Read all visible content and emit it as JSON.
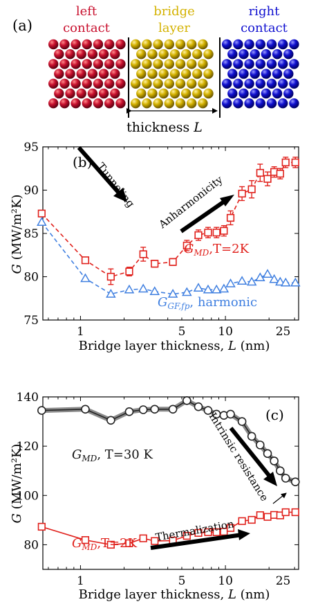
{
  "panel_a": {
    "label": "(a)",
    "left_line1": "left",
    "left_line2": "contact",
    "bridge_line1": "bridge",
    "bridge_line2": "layer",
    "right_line1": "right",
    "right_line2": "contact",
    "thickness_label": "thickness",
    "thickness_symbol": "L",
    "colors": {
      "left": "#c8102e",
      "bridge": "#d4b200",
      "right": "#1010d0"
    }
  },
  "chart_data": [
    {
      "type": "line",
      "panel_label": "(b)",
      "x_scale": "log",
      "xlim": [
        0.55,
        32
      ],
      "ylim": [
        75,
        95
      ],
      "xticks": [
        1,
        5,
        10,
        25
      ],
      "xtick_labels": [
        "1",
        "5",
        "10",
        "25"
      ],
      "yticks": [
        75,
        80,
        85,
        90,
        95
      ],
      "ytick_labels": [
        "75",
        "80",
        "85",
        "90",
        "95"
      ],
      "xlabel": "Bridge layer thickness,",
      "xlabel_symbol": "L",
      "xlabel_unit": "(nm)",
      "ylabel_symbol": "G",
      "ylabel_unit": "(MW/m²K)",
      "series": [
        {
          "name_main": "G",
          "name_sub": "MD",
          "name_rest": ",T=2K",
          "color": "#e0201b",
          "marker": "square",
          "dashed": true,
          "x": [
            0.54,
            1.08,
            1.62,
            2.17,
            2.71,
            3.25,
            4.34,
            5.42,
            6.51,
            7.59,
            8.68,
            9.76,
            10.85,
            13.02,
            15.19,
            17.36,
            19.53,
            21.7,
            23.87,
            26.04,
            30.38
          ],
          "y": [
            87.3,
            81.9,
            80.0,
            80.6,
            82.6,
            81.5,
            81.7,
            83.6,
            84.8,
            85.1,
            85.1,
            85.3,
            86.8,
            89.6,
            90.1,
            92.0,
            91.3,
            92.1,
            91.9,
            93.2,
            93.2
          ],
          "err": [
            0.3,
            0.3,
            0.9,
            0.5,
            0.8,
            0.4,
            0.4,
            0.6,
            0.6,
            0.6,
            0.6,
            0.6,
            0.8,
            0.8,
            1.0,
            1.0,
            0.8,
            0.6,
            0.6,
            0.6,
            0.6
          ]
        },
        {
          "name_main": "G",
          "name_sub": "GF,fp",
          "name_rest": ", harmonic",
          "color": "#3f7fe0",
          "marker": "triangle",
          "dashed": true,
          "x": [
            0.54,
            1.08,
            1.62,
            2.17,
            2.71,
            3.25,
            4.34,
            5.42,
            6.51,
            7.59,
            8.68,
            9.76,
            10.85,
            13.02,
            15.19,
            17.36,
            19.53,
            21.7,
            23.87,
            26.04,
            30.38
          ],
          "y": [
            86.3,
            79.8,
            78.0,
            78.5,
            78.6,
            78.3,
            78.0,
            78.2,
            78.7,
            78.5,
            78.5,
            78.6,
            79.2,
            79.5,
            79.4,
            79.9,
            80.3,
            79.7,
            79.4,
            79.3,
            79.3
          ]
        }
      ],
      "annotations": [
        {
          "text": "Tunneling",
          "x": 1.15,
          "y": 86.2,
          "rotate": 52
        },
        {
          "text": "Anharmonicity",
          "x": 5.2,
          "y": 87.6,
          "rotate": -38
        }
      ]
    },
    {
      "type": "line",
      "panel_label": "(c)",
      "x_scale": "log",
      "xlim": [
        0.55,
        32
      ],
      "ylim": [
        70,
        140
      ],
      "xticks": [
        1,
        5,
        10,
        25
      ],
      "xtick_labels": [
        "1",
        "5",
        "10",
        "25"
      ],
      "yticks": [
        80,
        100,
        120,
        140
      ],
      "ytick_labels": [
        "80",
        "100",
        "120",
        "140"
      ],
      "xlabel": "Bridge layer thickness,",
      "xlabel_symbol": "L",
      "xlabel_unit": "(nm)",
      "ylabel_symbol": "G",
      "ylabel_unit": "(MW/m²K)",
      "series": [
        {
          "name_main": "G",
          "name_sub": "MD",
          "name_rest": ", T=30 K",
          "color": "#222222",
          "marker": "circle",
          "dashed": false,
          "band": true,
          "x": [
            0.54,
            1.08,
            1.62,
            2.17,
            2.71,
            3.25,
            4.34,
            5.42,
            6.51,
            7.59,
            8.68,
            9.76,
            10.85,
            13.02,
            15.19,
            17.36,
            19.53,
            21.7,
            23.87,
            26.04,
            30.38
          ],
          "y": [
            134.5,
            135.0,
            130.5,
            134.0,
            134.8,
            135.0,
            135.0,
            138.5,
            136.0,
            134.5,
            133.0,
            132.5,
            133.0,
            130.0,
            124.0,
            120.5,
            117.0,
            114.0,
            110.0,
            107.0,
            105.5
          ]
        },
        {
          "name_main": "G",
          "name_sub": "MD",
          "name_rest": ",T=2K",
          "color": "#e0201b",
          "marker": "square",
          "dashed": false,
          "x": [
            0.54,
            1.08,
            1.62,
            2.17,
            2.71,
            3.25,
            4.34,
            5.42,
            6.51,
            7.59,
            8.68,
            9.76,
            10.85,
            13.02,
            15.19,
            17.36,
            19.53,
            21.7,
            23.87,
            26.04,
            30.38
          ],
          "y": [
            87.3,
            81.9,
            80.0,
            80.6,
            82.6,
            81.5,
            81.7,
            83.6,
            84.8,
            85.1,
            85.1,
            85.3,
            86.8,
            89.6,
            90.1,
            92.0,
            91.3,
            92.1,
            91.9,
            93.2,
            93.2
          ]
        }
      ],
      "annotations": [
        {
          "text": "Intrinsic resistance",
          "x": 10.0,
          "y": 128.0,
          "rotate": 60
        },
        {
          "text": "Thermalization",
          "x": 7.0,
          "y": 88.5,
          "rotate": -10
        }
      ]
    }
  ]
}
